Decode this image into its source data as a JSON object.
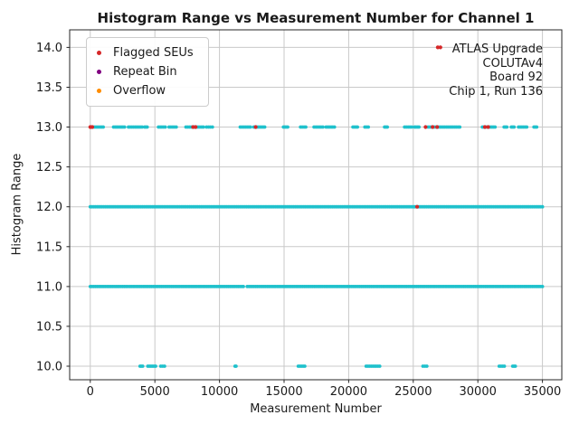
{
  "chart_data": {
    "type": "scatter",
    "title": "Histogram Range vs Measurement Number for Channel 1",
    "xlabel": "Measurement Number",
    "ylabel": "Histogram Range",
    "xlim": [
      -1600,
      36500
    ],
    "ylim": [
      9.83,
      14.22
    ],
    "xticks": [
      0,
      5000,
      10000,
      15000,
      20000,
      25000,
      30000,
      35000
    ],
    "yticks": [
      10.0,
      10.5,
      11.0,
      11.5,
      12.0,
      12.5,
      13.0,
      13.5,
      14.0
    ],
    "grid": true,
    "grid_color": "#c9c9c9",
    "spine_color": "#262626",
    "legend": {
      "position": "top-left",
      "entries": [
        {
          "label": "Flagged SEUs",
          "color": "#d62728"
        },
        {
          "label": "Repeat Bin",
          "color": "#800080"
        },
        {
          "label": "Overflow",
          "color": "#ff8c00"
        }
      ]
    },
    "annotation": {
      "position": "top-right",
      "lines": [
        "ATLAS Upgrade",
        "COLUTAv4",
        "Board 92",
        "Chip 1, Run 136"
      ]
    },
    "series": [
      {
        "name": "measurements",
        "color": "#1fc1cc",
        "point_spacing_x": 130,
        "bands": [
          {
            "y": 13,
            "x_segments": [
              [
                100,
                1000
              ],
              [
                1800,
                2650
              ],
              [
                2950,
                4000
              ],
              [
                4200,
                4400
              ],
              [
                5280,
                5800
              ],
              [
                6100,
                6650
              ],
              [
                7400,
                8750
              ],
              [
                9000,
                9450
              ],
              [
                11600,
                12400
              ],
              [
                12650,
                13500
              ],
              [
                14950,
                15280
              ],
              [
                16270,
                16680
              ],
              [
                17320,
                18000
              ],
              [
                18250,
                18900
              ],
              [
                20330,
                20680
              ],
              [
                21250,
                21520
              ],
              [
                22780,
                22990
              ],
              [
                24330,
                24880
              ],
              [
                25100,
                25440
              ],
              [
                26150,
                28600
              ],
              [
                30350,
                31330
              ],
              [
                32030,
                32240
              ],
              [
                32590,
                32800
              ],
              [
                33150,
                33780
              ],
              [
                34340,
                34550
              ]
            ]
          },
          {
            "y": 12,
            "x_segments": [
              [
                0,
                35000
              ]
            ]
          },
          {
            "y": 11,
            "x_segments": [
              [
                0,
                2900
              ],
              [
                3050,
                11850
              ],
              [
                12150,
                35000
              ]
            ]
          },
          {
            "y": 10,
            "x_segments": [
              [
                3850,
                4050
              ],
              [
                4450,
                5050
              ],
              [
                5450,
                5750
              ],
              [
                11200,
                11280
              ],
              [
                16100,
                16600
              ],
              [
                21350,
                22400
              ],
              [
                25750,
                26050
              ],
              [
                31650,
                32050
              ],
              [
                32700,
                32900
              ]
            ]
          }
        ]
      },
      {
        "name": "flagged_seus",
        "label": "Flagged SEUs",
        "color": "#d62728",
        "points": [
          [
            0,
            13
          ],
          [
            150,
            13
          ],
          [
            7950,
            13
          ],
          [
            8150,
            13
          ],
          [
            12800,
            13
          ],
          [
            25300,
            12
          ],
          [
            25950,
            13
          ],
          [
            26500,
            13
          ],
          [
            26850,
            13
          ],
          [
            26900,
            14
          ],
          [
            27100,
            14
          ],
          [
            30550,
            13
          ],
          [
            30800,
            13
          ]
        ]
      },
      {
        "name": "repeat_bin",
        "label": "Repeat Bin",
        "color": "#800080",
        "points": []
      },
      {
        "name": "overflow",
        "label": "Overflow",
        "color": "#ff8c00",
        "points": []
      }
    ]
  }
}
